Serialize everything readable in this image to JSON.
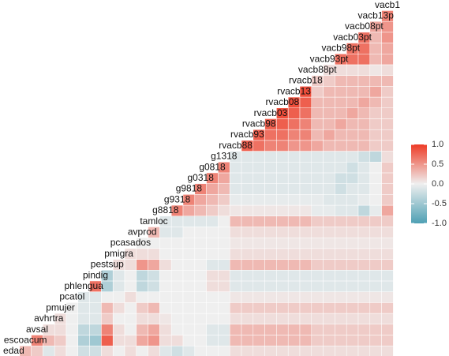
{
  "chart_data": {
    "type": "heatmap",
    "variables": [
      "edad",
      "escoacum",
      "avsal",
      "avhrtra",
      "pmujer",
      "pcatol",
      "phlengua",
      "pindig",
      "pestsup",
      "pmigra",
      "pcasados",
      "avprod",
      "tamloc",
      "g8818",
      "g9318",
      "g9818",
      "g0318",
      "g0818",
      "g1318",
      "rvacb88",
      "rvacb93",
      "rvacb98",
      "rvacb03",
      "rvacb08",
      "rvacb13",
      "rvacb18",
      "vacb88pt",
      "vacb93pt",
      "vacb98pt",
      "vacb03pt",
      "vacb08pt",
      "vacb13p",
      "vacb1"
    ],
    "values": [
      [
        0.3,
        0.2,
        -0.1,
        0.1,
        0,
        -0.2,
        -0.2,
        0.1,
        0,
        0.1,
        0,
        0.1,
        -0.1,
        -0.2,
        -0.1,
        0,
        0,
        0,
        0.1,
        0.1,
        0.1,
        0.1,
        0.1,
        0.1,
        0.1,
        0.1,
        0.1,
        0.1,
        0.1,
        0.1,
        0.1,
        0.1
      ],
      [
        0.6,
        0.3,
        0.2,
        0,
        -0.4,
        -0.5,
        0.8,
        0.1,
        0.1,
        0.4,
        0.5,
        0.1,
        0.1,
        0,
        0,
        -0.1,
        -0.1,
        0.3,
        0.3,
        0.3,
        0.3,
        0.3,
        0.3,
        0.3,
        0.2,
        0.2,
        0.2,
        0.2,
        0.2,
        0.2,
        0.2
      ],
      [
        0.1,
        0.1,
        0,
        -0.3,
        -0.3,
        0.6,
        0.1,
        0,
        0.3,
        0.4,
        0.1,
        0,
        0,
        0,
        -0.1,
        -0.1,
        0.3,
        0.3,
        0.3,
        0.3,
        0.3,
        0.3,
        0.3,
        0.2,
        0.2,
        0.2,
        0.2,
        0.2,
        0.2,
        0.2
      ],
      [
        0.1,
        0,
        -0.1,
        -0.1,
        0.2,
        0,
        0,
        0.1,
        0.1,
        0.05,
        0,
        0,
        0,
        0,
        0,
        0.1,
        0.1,
        0.1,
        0.1,
        0.1,
        0.1,
        0.1,
        0.1,
        0.1,
        0.1,
        0.1,
        0.1,
        0.1,
        0.1
      ],
      [
        0,
        -0.1,
        -0.1,
        0.3,
        0.1,
        0,
        0.2,
        0.3,
        0,
        0,
        0,
        0,
        0,
        0,
        0.2,
        0.2,
        0.2,
        0.2,
        0.2,
        0.2,
        0.2,
        0.2,
        0.2,
        0.2,
        0.2,
        0.2,
        0.2,
        0.2
      ],
      [
        -0.1,
        -0.1,
        0,
        0,
        0.1,
        0,
        0,
        0,
        0,
        0,
        0,
        0,
        0,
        0.05,
        0.05,
        0.05,
        0.05,
        0.05,
        0.05,
        0.05,
        0.05,
        0.05,
        0.05,
        0.05,
        0.05,
        0.05,
        0.05
      ],
      [
        0.7,
        -0.4,
        -0.1,
        0,
        -0.3,
        -0.2,
        0,
        0,
        0,
        0,
        0.1,
        0.1,
        -0.1,
        -0.1,
        -0.1,
        -0.1,
        -0.1,
        -0.1,
        -0.1,
        -0.1,
        -0.1,
        -0.1,
        -0.1,
        -0.1,
        -0.1,
        -0.1
      ],
      [
        -0.4,
        -0.1,
        0,
        -0.3,
        -0.2,
        0,
        0,
        0,
        0,
        0.1,
        0.1,
        -0.1,
        -0.1,
        -0.1,
        -0.1,
        -0.1,
        -0.1,
        -0.1,
        -0.1,
        -0.1,
        -0.1,
        -0.1,
        -0.1,
        -0.1,
        -0.1
      ],
      [
        0.1,
        0.1,
        0.5,
        0.4,
        0.1,
        0,
        0,
        0,
        -0.1,
        -0.1,
        0.3,
        0.3,
        0.3,
        0.3,
        0.3,
        0.3,
        0.3,
        0.2,
        0.2,
        0.2,
        0.2,
        0.2,
        0.2,
        0.2
      ],
      [
        0.1,
        0.1,
        0.1,
        0,
        0,
        0,
        0,
        0,
        0,
        0.1,
        0.1,
        0.1,
        0.1,
        0.1,
        0.1,
        0.1,
        0.1,
        0.1,
        0.1,
        0.1,
        0.1,
        0.1,
        0.1
      ],
      [
        0,
        0,
        0,
        0,
        0,
        0,
        0,
        0,
        0.05,
        0.05,
        0.05,
        0.05,
        0.05,
        0.05,
        0.05,
        0.05,
        0.05,
        0.05,
        0.05,
        0.05,
        0.05,
        0.05
      ],
      [
        0.3,
        -0.1,
        -0.1,
        0,
        0,
        0,
        0,
        0.1,
        0.1,
        0.1,
        0.1,
        0.1,
        0.1,
        0.1,
        0.1,
        0.1,
        0.1,
        0.1,
        0.1,
        0.1,
        0.1
      ],
      [
        -0.1,
        -0.1,
        -0.1,
        -0.1,
        -0.1,
        0,
        0.3,
        0.3,
        0.3,
        0.3,
        0.3,
        0.3,
        0.3,
        0.2,
        0.2,
        0.2,
        0.2,
        0.2,
        0.2,
        0.2
      ],
      [
        0.6,
        0.4,
        0.3,
        0.2,
        0.1,
        0.05,
        0.05,
        0.05,
        0.05,
        0.05,
        0.05,
        0.05,
        -0.05,
        -0.05,
        -0.1,
        -0.1,
        -0.3,
        -0.05,
        0.4
      ],
      [
        0.6,
        0.4,
        0.3,
        0.2,
        -0.05,
        -0.05,
        -0.05,
        -0.05,
        -0.05,
        -0.05,
        -0.05,
        -0.05,
        -0.1,
        -0.1,
        -0.1,
        -0.05,
        0,
        0.2
      ],
      [
        0.6,
        0.4,
        0.3,
        -0.1,
        -0.1,
        -0.1,
        -0.1,
        -0.1,
        -0.1,
        -0.1,
        -0.1,
        -0.1,
        -0.2,
        -0.1,
        -0.1,
        0,
        0.2
      ],
      [
        0.6,
        0.4,
        -0.1,
        -0.1,
        -0.1,
        -0.1,
        -0.1,
        -0.1,
        -0.1,
        -0.1,
        -0.1,
        -0.2,
        -0.2,
        -0.1,
        0,
        0.2
      ],
      [
        0.6,
        -0.1,
        -0.1,
        -0.1,
        -0.1,
        -0.1,
        -0.1,
        -0.1,
        -0.1,
        -0.1,
        -0.1,
        -0.2,
        -0.1,
        0,
        0.2
      ],
      [
        -0.1,
        -0.1,
        -0.1,
        -0.1,
        -0.1,
        -0.1,
        -0.1,
        -0.1,
        -0.1,
        -0.1,
        -0.1,
        -0.2,
        -0.3,
        0.1
      ],
      [
        0.8,
        0.7,
        0.6,
        0.6,
        0.5,
        0.5,
        0.4,
        0.3,
        0.3,
        0.3,
        0.3,
        0.2,
        0.2
      ],
      [
        0.8,
        0.7,
        0.7,
        0.6,
        0.6,
        0.3,
        0.4,
        0.3,
        0.3,
        0.3,
        0.2,
        0.2
      ],
      [
        0.8,
        0.8,
        0.7,
        0.6,
        0.3,
        0.3,
        0.4,
        0.3,
        0.3,
        0.2,
        0.2
      ],
      [
        0.9,
        0.8,
        0.7,
        0.3,
        0.3,
        0.3,
        0.4,
        0.3,
        0.2,
        0.2
      ],
      [
        0.9,
        0.8,
        0.3,
        0.3,
        0.3,
        0.3,
        0.4,
        0.3,
        0.2
      ],
      [
        0.9,
        0.2,
        0.3,
        0.3,
        0.3,
        0.3,
        0.4,
        0.2
      ],
      [
        0.2,
        0.2,
        0.3,
        0.3,
        0.3,
        0.3,
        0.3
      ],
      [
        0.1,
        0.1,
        0.1,
        0.1,
        0.05,
        0.1
      ],
      [
        0.7,
        0.7,
        0.7,
        0.3,
        0.4
      ],
      [
        0.7,
        0.7,
        0.3,
        0.4
      ],
      [
        0.7,
        0.3,
        0.5
      ],
      [
        0.4,
        0.5
      ],
      [
        0.6
      ]
    ],
    "colors": {
      "low": "#4ea0b4",
      "mid": "#efefef",
      "high": "#ee3b26"
    },
    "clim": [
      -1,
      1
    ],
    "cticks": [
      {
        "value": 1,
        "label": "1.0"
      },
      0.5,
      {
        "value": 0,
        "label": "0.0"
      },
      -0.5,
      {
        "value": -1,
        "label": "-1.0"
      }
    ]
  }
}
